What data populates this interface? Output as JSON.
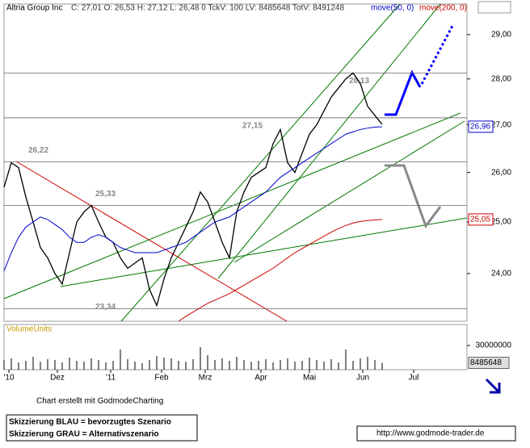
{
  "chart_data": {
    "type": "line",
    "header": {
      "title": "Altria Group Inc",
      "stats": "C: 27,01  O: 26,53  H: 27,12  L: 26,48  0  TckV: 100  LV: 8485648  TotV: 8491248",
      "ma50_label": "move(50, 0)",
      "ma200_label": "move(200, 0)"
    },
    "log_scale": true,
    "xlim": [
      0,
      191
    ],
    "xticks": [
      {
        "value": 2,
        "label": "'10"
      },
      {
        "value": 22,
        "label": "Dez"
      },
      {
        "value": 44,
        "label": "'11"
      },
      {
        "value": 65,
        "label": "Feb"
      },
      {
        "value": 83,
        "label": "Mrz"
      },
      {
        "value": 106,
        "label": "Apr"
      },
      {
        "value": 126,
        "label": "Mai"
      },
      {
        "value": 148,
        "label": "Jun"
      },
      {
        "value": 169,
        "label": "Jul"
      }
    ],
    "ylim": [
      23.11,
      29.71
    ],
    "yticks": [
      {
        "value": 24,
        "label": "24,00"
      },
      {
        "value": 25,
        "label": "25,00"
      },
      {
        "value": 26,
        "label": "26,00"
      },
      {
        "value": 27,
        "label": "27,00"
      },
      {
        "value": 28,
        "label": "28,00"
      },
      {
        "value": 29,
        "label": "29,00"
      }
    ],
    "x": [
      0,
      3,
      6,
      9,
      12,
      15,
      18,
      21,
      24,
      27,
      30,
      33,
      36,
      39,
      42,
      45,
      48,
      51,
      54,
      57,
      60,
      63,
      66,
      69,
      72,
      75,
      78,
      81,
      84,
      87,
      90,
      93,
      96,
      99,
      102,
      105,
      108,
      111,
      114,
      117,
      120,
      123,
      126,
      129,
      132,
      135,
      138,
      141,
      144,
      147,
      150,
      153,
      156
    ],
    "series": [
      {
        "name": "Altria Group Inc",
        "color": "#000000",
        "values": [
          25.7,
          26.2,
          26.1,
          25.5,
          25.0,
          24.5,
          24.3,
          24.0,
          23.8,
          24.4,
          25.0,
          25.2,
          25.33,
          25.0,
          24.7,
          24.6,
          24.3,
          24.1,
          24.2,
          24.3,
          23.7,
          23.4,
          23.9,
          24.3,
          24.6,
          24.9,
          25.2,
          25.6,
          25.4,
          25.0,
          24.6,
          24.3,
          25.2,
          25.6,
          25.9,
          26.0,
          26.1,
          26.6,
          26.9,
          26.2,
          26.0,
          26.4,
          26.8,
          27.0,
          27.3,
          27.6,
          27.8,
          28.0,
          28.13,
          27.9,
          27.4,
          27.2,
          27.01
        ]
      },
      {
        "name": "move(50, 0)",
        "color": "#0000cc",
        "values": [
          24.05,
          24.4,
          24.7,
          24.9,
          25.0,
          25.1,
          25.05,
          24.95,
          24.85,
          24.7,
          24.6,
          24.6,
          24.7,
          24.75,
          24.7,
          24.6,
          24.5,
          24.45,
          24.4,
          24.4,
          24.4,
          24.4,
          24.45,
          24.5,
          24.55,
          24.6,
          24.7,
          24.8,
          24.9,
          25.0,
          25.05,
          25.1,
          25.2,
          25.3,
          25.4,
          25.5,
          25.6,
          25.75,
          25.9,
          26.0,
          26.1,
          26.2,
          26.3,
          26.4,
          26.5,
          26.6,
          26.7,
          26.8,
          26.85,
          26.9,
          26.93,
          26.95,
          26.96
        ]
      },
      {
        "name": "move(200, 0)",
        "color": "#cc0000",
        "values": [
          null,
          null,
          null,
          null,
          null,
          null,
          null,
          null,
          null,
          null,
          null,
          null,
          null,
          null,
          null,
          null,
          null,
          null,
          null,
          null,
          null,
          null,
          null,
          null,
          23.11,
          23.2,
          23.28,
          23.36,
          23.44,
          23.5,
          23.56,
          23.62,
          23.7,
          23.78,
          23.86,
          23.94,
          24.02,
          24.1,
          24.2,
          24.3,
          24.4,
          24.48,
          24.56,
          24.64,
          24.72,
          24.8,
          24.87,
          24.93,
          24.98,
          25.01,
          25.03,
          25.04,
          25.05
        ]
      }
    ],
    "price_boxes": [
      {
        "label": "26,96",
        "value": 26.96,
        "color": "#0000cc"
      },
      {
        "label": "25,05",
        "value": 25.05,
        "color": "#cc0000"
      }
    ],
    "levels": [
      {
        "label": "26,22",
        "value": 26.22
      },
      {
        "label": "25,33",
        "value": 25.33
      },
      {
        "label": "23,34",
        "value": 23.34
      },
      {
        "label": "27,15",
        "value": 27.15
      },
      {
        "label": "28,13",
        "value": 28.13
      }
    ],
    "volume": {
      "title": "VolumeUnits",
      "ylim": [
        0,
        56000000
      ],
      "yticks": [
        30000000
      ],
      "last": 8485648,
      "values": [
        12000000,
        14000000,
        9000000,
        11000000,
        16000000,
        10000000,
        13000000,
        12000000,
        9000000,
        15000000,
        11000000,
        10000000,
        14000000,
        12000000,
        9000000,
        11000000,
        25000000,
        13000000,
        10000000,
        8000000,
        12000000,
        17000000,
        15000000,
        14000000,
        11000000,
        10000000,
        13000000,
        28000000,
        18000000,
        12000000,
        14000000,
        11000000,
        16000000,
        12000000,
        10000000,
        11000000,
        13000000,
        9000000,
        12000000,
        14000000,
        10000000,
        11000000,
        15000000,
        12000000,
        10000000,
        13000000,
        9000000,
        25000000,
        11000000,
        14000000,
        16000000,
        12000000,
        8485648
      ]
    },
    "footer": {
      "credit": "Chart erstellt mit GodmodeCharting",
      "blue": "Skizzierung BLAU = bevorzugtes Szenario",
      "grey": "Skizzierung GRAU = Alternativszenario",
      "url": "http://www.godmode-trader.de"
    }
  }
}
